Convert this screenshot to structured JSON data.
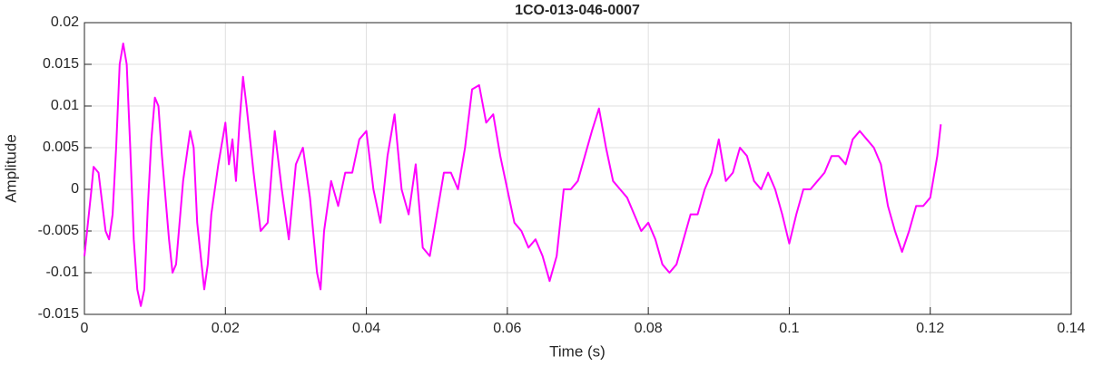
{
  "chart_data": {
    "type": "line",
    "title": "1CO-013-046-0007",
    "xlabel": "Time (s)",
    "ylabel": "Amplitude",
    "x": [
      0,
      0.001,
      0.0013,
      0.002,
      0.003,
      0.0035,
      0.004,
      0.0045,
      0.005,
      0.0055,
      0.006,
      0.0065,
      0.007,
      0.0075,
      0.008,
      0.0085,
      0.009,
      0.0095,
      0.01,
      0.0105,
      0.011,
      0.012,
      0.0125,
      0.013,
      0.014,
      0.015,
      0.0155,
      0.016,
      0.017,
      0.0175,
      0.018,
      0.019,
      0.02,
      0.0205,
      0.021,
      0.0215,
      0.022,
      0.0225,
      0.023,
      0.024,
      0.025,
      0.026,
      0.027,
      0.028,
      0.029,
      0.03,
      0.031,
      0.032,
      0.033,
      0.0335,
      0.034,
      0.035,
      0.036,
      0.037,
      0.038,
      0.039,
      0.04,
      0.041,
      0.042,
      0.043,
      0.044,
      0.045,
      0.046,
      0.047,
      0.048,
      0.049,
      0.05,
      0.051,
      0.052,
      0.053,
      0.054,
      0.055,
      0.056,
      0.057,
      0.058,
      0.059,
      0.06,
      0.061,
      0.062,
      0.063,
      0.064,
      0.065,
      0.066,
      0.067,
      0.068,
      0.069,
      0.07,
      0.071,
      0.072,
      0.073,
      0.074,
      0.075,
      0.076,
      0.077,
      0.078,
      0.079,
      0.08,
      0.081,
      0.082,
      0.083,
      0.084,
      0.085,
      0.086,
      0.087,
      0.088,
      0.089,
      0.09,
      0.091,
      0.092,
      0.093,
      0.094,
      0.095,
      0.096,
      0.097,
      0.098,
      0.099,
      0.1,
      0.101,
      0.102,
      0.103,
      0.104,
      0.105,
      0.106,
      0.107,
      0.108,
      0.109,
      0.11,
      0.111,
      0.112,
      0.113,
      0.114,
      0.115,
      0.116,
      0.117,
      0.118,
      0.119,
      0.12,
      0.121,
      0.1215
    ],
    "values": [
      -0.008,
      0,
      0.0027,
      0.002,
      -0.005,
      -0.006,
      -0.003,
      0.005,
      0.015,
      0.0175,
      0.015,
      0.005,
      -0.006,
      -0.012,
      -0.014,
      -0.012,
      -0.002,
      0.006,
      0.011,
      0.01,
      0.004,
      -0.006,
      -0.01,
      -0.009,
      0.001,
      0.007,
      0.005,
      -0.004,
      -0.012,
      -0.009,
      -0.003,
      0.003,
      0.008,
      0.003,
      0.006,
      0.001,
      0.008,
      0.0135,
      0.01,
      0.002,
      -0.005,
      -0.004,
      0.007,
      0,
      -0.006,
      0.003,
      0.005,
      -0.001,
      -0.01,
      -0.012,
      -0.005,
      0.001,
      -0.002,
      0.002,
      0.002,
      0.006,
      0.007,
      0,
      -0.004,
      0.004,
      0.009,
      0,
      -0.003,
      0.003,
      -0.007,
      -0.008,
      -0.003,
      0.002,
      0.002,
      0,
      0.005,
      0.012,
      0.0125,
      0.008,
      0.009,
      0.004,
      0,
      -0.004,
      -0.005,
      -0.007,
      -0.006,
      -0.008,
      -0.011,
      -0.008,
      0,
      0,
      0.001,
      0.004,
      0.007,
      0.0097,
      0.005,
      0.001,
      0,
      -0.001,
      -0.003,
      -0.005,
      -0.004,
      -0.006,
      -0.009,
      -0.01,
      -0.009,
      -0.006,
      -0.003,
      -0.003,
      0,
      0.002,
      0.006,
      0.001,
      0.002,
      0.005,
      0.004,
      0.001,
      0,
      0.002,
      0,
      -0.003,
      -0.0065,
      -0.003,
      0,
      0,
      0.001,
      0.002,
      0.004,
      0.004,
      0.003,
      0.006,
      0.007,
      0.006,
      0.005,
      0.003,
      -0.002,
      -0.005,
      -0.0075,
      -0.005,
      -0.002,
      -0.002,
      -0.001,
      0.004,
      0.0078
    ],
    "color": "#ff00ff",
    "xlim": [
      0,
      0.14
    ],
    "xticks": [
      0,
      0.02,
      0.04,
      0.06,
      0.08,
      0.1,
      0.12,
      0.14
    ],
    "ylim": [
      -0.015,
      0.02
    ],
    "yticks": [
      -0.015,
      -0.01,
      -0.005,
      0,
      0.005,
      0.01,
      0.015,
      0.02
    ],
    "grid": true
  }
}
